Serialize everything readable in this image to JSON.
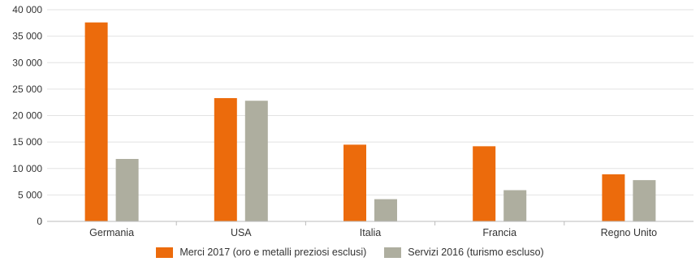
{
  "chart_data": {
    "type": "bar",
    "categories": [
      "Germania",
      "USA",
      "Italia",
      "Francia",
      "Regno Unito"
    ],
    "series": [
      {
        "name": "Merci 2017 (oro e metalli preziosi esclusi)",
        "color": "#ec6b0c",
        "values": [
          37600,
          23300,
          14500,
          14200,
          8900
        ]
      },
      {
        "name": "Servizi 2016 (turismo escluso)",
        "color": "#aeae9f",
        "values": [
          11800,
          22800,
          4200,
          5900,
          7800
        ]
      }
    ],
    "ylim": [
      0,
      40000
    ],
    "yticks": [
      0,
      5000,
      10000,
      15000,
      20000,
      25000,
      30000,
      35000,
      40000
    ],
    "ytick_labels": [
      "0",
      "5 000",
      "10 000",
      "15 000",
      "20 000",
      "25 000",
      "30 000",
      "35 000",
      "40 000"
    ],
    "grid": true,
    "legend_position": "bottom"
  }
}
